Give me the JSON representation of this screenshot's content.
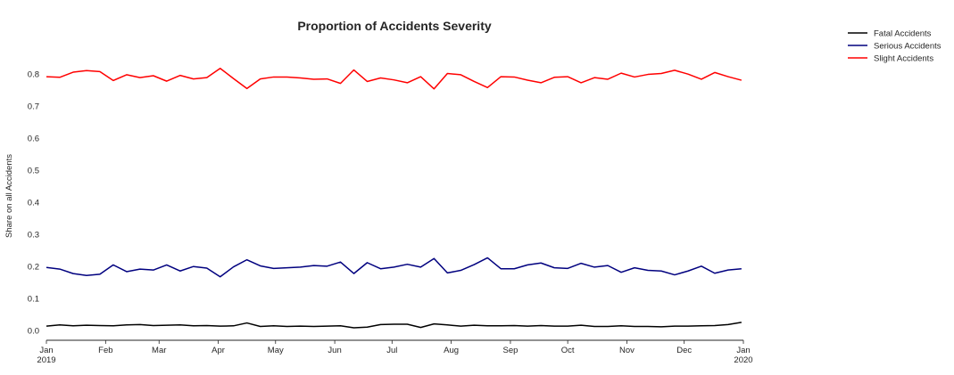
{
  "chart_data": {
    "type": "line",
    "title": "Proportion of Accidents Severity",
    "xlabel": "",
    "ylabel": "Share on all Accidents",
    "x_range": [
      "2019-01-01",
      "2020-01-01"
    ],
    "ylim": [
      -0.03,
      0.92
    ],
    "yticks": [
      0.0,
      0.1,
      0.2,
      0.3,
      0.4,
      0.5,
      0.6,
      0.7,
      0.8
    ],
    "ytick_labels": [
      "0.0",
      "0.1",
      "0.2",
      "0.3",
      "0.4",
      "0.5",
      "0.6",
      "0.7",
      "0.8"
    ],
    "xticks": [
      {
        "date": "2019-01-01",
        "label": "Jan",
        "sublabel": "2019"
      },
      {
        "date": "2019-02-01",
        "label": "Feb",
        "sublabel": ""
      },
      {
        "date": "2019-03-01",
        "label": "Mar",
        "sublabel": ""
      },
      {
        "date": "2019-04-01",
        "label": "Apr",
        "sublabel": ""
      },
      {
        "date": "2019-05-01",
        "label": "May",
        "sublabel": ""
      },
      {
        "date": "2019-06-01",
        "label": "Jun",
        "sublabel": ""
      },
      {
        "date": "2019-07-01",
        "label": "Jul",
        "sublabel": ""
      },
      {
        "date": "2019-08-01",
        "label": "Aug",
        "sublabel": ""
      },
      {
        "date": "2019-09-01",
        "label": "Sep",
        "sublabel": ""
      },
      {
        "date": "2019-10-01",
        "label": "Oct",
        "sublabel": ""
      },
      {
        "date": "2019-11-01",
        "label": "Nov",
        "sublabel": ""
      },
      {
        "date": "2019-12-01",
        "label": "Dec",
        "sublabel": ""
      },
      {
        "date": "2020-01-01",
        "label": "Jan",
        "sublabel": "2020"
      }
    ],
    "grid": false,
    "legend_position": "outside-top-right",
    "x": [
      "2019-01-01",
      "2019-01-08",
      "2019-01-15",
      "2019-01-22",
      "2019-01-29",
      "2019-02-05",
      "2019-02-12",
      "2019-02-19",
      "2019-02-26",
      "2019-03-05",
      "2019-03-12",
      "2019-03-19",
      "2019-03-26",
      "2019-04-02",
      "2019-04-09",
      "2019-04-16",
      "2019-04-23",
      "2019-04-30",
      "2019-05-07",
      "2019-05-14",
      "2019-05-21",
      "2019-05-28",
      "2019-06-04",
      "2019-06-11",
      "2019-06-18",
      "2019-06-25",
      "2019-07-02",
      "2019-07-09",
      "2019-07-16",
      "2019-07-23",
      "2019-07-30",
      "2019-08-06",
      "2019-08-13",
      "2019-08-20",
      "2019-08-27",
      "2019-09-03",
      "2019-09-10",
      "2019-09-17",
      "2019-09-24",
      "2019-10-01",
      "2019-10-08",
      "2019-10-15",
      "2019-10-22",
      "2019-10-29",
      "2019-11-05",
      "2019-11-12",
      "2019-11-19",
      "2019-11-26",
      "2019-12-03",
      "2019-12-10",
      "2019-12-17",
      "2019-12-24",
      "2019-12-31"
    ],
    "series": [
      {
        "name": "Fatal Accidents",
        "color": "#000000",
        "values": [
          0.014,
          0.018,
          0.015,
          0.017,
          0.016,
          0.015,
          0.018,
          0.019,
          0.016,
          0.017,
          0.018,
          0.015,
          0.016,
          0.014,
          0.015,
          0.024,
          0.013,
          0.015,
          0.013,
          0.014,
          0.013,
          0.014,
          0.015,
          0.009,
          0.011,
          0.019,
          0.02,
          0.02,
          0.01,
          0.021,
          0.018,
          0.014,
          0.017,
          0.015,
          0.015,
          0.016,
          0.014,
          0.016,
          0.014,
          0.014,
          0.017,
          0.013,
          0.013,
          0.015,
          0.013,
          0.013,
          0.012,
          0.014,
          0.014,
          0.015,
          0.016,
          0.019,
          0.026
        ]
      },
      {
        "name": "Serious Accidents",
        "color": "#00007f",
        "values": [
          0.197,
          0.192,
          0.178,
          0.172,
          0.176,
          0.205,
          0.184,
          0.192,
          0.189,
          0.205,
          0.186,
          0.2,
          0.195,
          0.168,
          0.199,
          0.221,
          0.202,
          0.194,
          0.196,
          0.198,
          0.203,
          0.201,
          0.214,
          0.178,
          0.212,
          0.193,
          0.198,
          0.207,
          0.198,
          0.225,
          0.18,
          0.188,
          0.206,
          0.227,
          0.193,
          0.193,
          0.205,
          0.211,
          0.196,
          0.194,
          0.21,
          0.198,
          0.203,
          0.182,
          0.196,
          0.188,
          0.186,
          0.174,
          0.186,
          0.201,
          0.179,
          0.189,
          0.193
        ]
      },
      {
        "name": "Slight Accidents",
        "color": "#ff0000",
        "values": [
          0.792,
          0.79,
          0.806,
          0.811,
          0.808,
          0.78,
          0.798,
          0.789,
          0.795,
          0.778,
          0.796,
          0.785,
          0.789,
          0.818,
          0.786,
          0.755,
          0.785,
          0.791,
          0.791,
          0.788,
          0.784,
          0.785,
          0.771,
          0.813,
          0.777,
          0.788,
          0.782,
          0.773,
          0.792,
          0.754,
          0.802,
          0.798,
          0.777,
          0.758,
          0.792,
          0.791,
          0.781,
          0.773,
          0.79,
          0.792,
          0.773,
          0.789,
          0.784,
          0.803,
          0.791,
          0.799,
          0.802,
          0.812,
          0.8,
          0.784,
          0.805,
          0.792,
          0.781
        ]
      }
    ]
  }
}
